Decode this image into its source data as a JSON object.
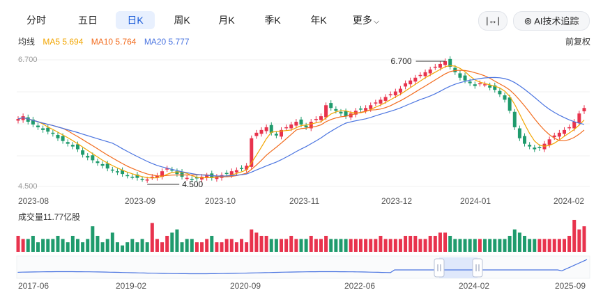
{
  "tabs": [
    {
      "label": "分时",
      "active": false
    },
    {
      "label": "五日",
      "active": false
    },
    {
      "label": "日K",
      "active": true
    },
    {
      "label": "周K",
      "active": false
    },
    {
      "label": "月K",
      "active": false
    },
    {
      "label": "季K",
      "active": false
    },
    {
      "label": "年K",
      "active": false
    },
    {
      "label": "更多",
      "active": false
    }
  ],
  "toolbar": {
    "expand_icon": "expand-horizontal-icon",
    "ai_label": "AI技术追踪",
    "ai_icon": "ai-spiral-icon"
  },
  "ma": {
    "title": "均线",
    "ma5": "MA5 5.694",
    "ma10": "MA10 5.764",
    "ma20": "MA20 5.777"
  },
  "adjust_label": "前复权",
  "colors": {
    "up": "#e8334d",
    "down": "#1f9b6d",
    "ma5": "#f2a500",
    "ma10": "#f26b1d",
    "ma20": "#4a74e0",
    "accent": "#1a5bd8"
  },
  "chart_data": {
    "type": "candlestick",
    "price_high_label": "6.700",
    "price_low_label": "4.500",
    "max_annotation": "6.700",
    "min_annotation": "4.500",
    "ylim": [
      4.5,
      6.7
    ],
    "x_ticks": [
      "2023-08",
      "2023-09",
      "2023-10",
      "2023-11",
      "2023-12",
      "2024-01",
      "2024-02"
    ],
    "closes": [
      5.65,
      5.7,
      5.6,
      5.55,
      5.5,
      5.45,
      5.42,
      5.38,
      5.3,
      5.25,
      5.2,
      5.15,
      5.1,
      5.0,
      4.95,
      4.9,
      4.85,
      4.8,
      4.75,
      4.72,
      4.68,
      4.65,
      4.62,
      4.6,
      4.58,
      4.56,
      4.55,
      4.6,
      4.62,
      4.7,
      4.75,
      4.72,
      4.65,
      4.6,
      4.58,
      4.55,
      4.57,
      4.6,
      4.62,
      4.58,
      4.6,
      4.63,
      4.65,
      4.7,
      4.72,
      4.75,
      4.8,
      5.3,
      5.4,
      5.45,
      5.5,
      5.4,
      5.35,
      5.45,
      5.5,
      5.55,
      5.6,
      5.55,
      5.5,
      5.6,
      5.65,
      5.7,
      5.9,
      5.85,
      5.8,
      5.75,
      5.7,
      5.75,
      5.8,
      5.82,
      5.85,
      5.9,
      5.95,
      6.0,
      6.05,
      6.1,
      6.15,
      6.2,
      6.3,
      6.35,
      6.4,
      6.45,
      6.5,
      6.55,
      6.6,
      6.65,
      6.7,
      6.6,
      6.5,
      6.4,
      6.35,
      6.3,
      6.25,
      6.3,
      6.28,
      6.22,
      6.18,
      6.1,
      6.0,
      5.8,
      5.5,
      5.3,
      5.2,
      5.15,
      5.1,
      5.12,
      5.2,
      5.28,
      5.35,
      5.4,
      5.45,
      5.5,
      5.6,
      5.75,
      5.85
    ],
    "volume_title": "成交量11.77亿股",
    "volumes": [
      5,
      4,
      4,
      5,
      3,
      4,
      4,
      4,
      5,
      4,
      3,
      5,
      4,
      3,
      4,
      8,
      5,
      3,
      4,
      6,
      3,
      2,
      3,
      4,
      3,
      4,
      3,
      9,
      4,
      3,
      5,
      6,
      7,
      3,
      4,
      4,
      3,
      3,
      4,
      5,
      3,
      3,
      4,
      4,
      3,
      4,
      3,
      7,
      6,
      5,
      5,
      4,
      4,
      4,
      4,
      5,
      4,
      4,
      4,
      5,
      4,
      4,
      5,
      4,
      4,
      4,
      4,
      4,
      4,
      4,
      4,
      4,
      4,
      5,
      4,
      4,
      4,
      4,
      5,
      5,
      5,
      4,
      4,
      5,
      5,
      6,
      6,
      5,
      4,
      4,
      4,
      4,
      4,
      4,
      4,
      4,
      4,
      4,
      4,
      5,
      7,
      6,
      5,
      4,
      4,
      4,
      4,
      4,
      4,
      4,
      4,
      5,
      10,
      7,
      8
    ],
    "range_ticks": [
      "2017-06",
      "2019-02",
      "2020-09",
      "2022-06",
      "2024-02",
      "2025-09"
    ]
  }
}
